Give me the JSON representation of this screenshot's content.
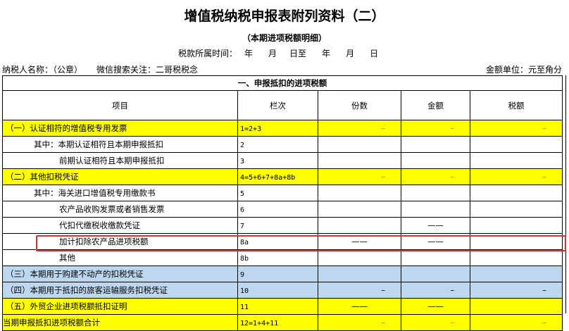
{
  "title": "增值税纳税申报表附列资料（二）",
  "subtitle": "（本期进项税额明细）",
  "period": {
    "label": "税款所属时间：",
    "year1": "年",
    "month1": "月",
    "day1": "日至",
    "year2": "年",
    "month2": "月",
    "day2": "日"
  },
  "taxpayer": "纳税人名称：（公章）",
  "wechat": "微信搜索关注：二哥税税念",
  "unit": "金额单位：元至角分",
  "section": "一、申报抵扣的进项税额",
  "headers": [
    "项目",
    "栏次",
    "份数",
    "金额",
    "税额"
  ],
  "rows": [
    {
      "item": "（一）认证相符的增值税专用发票",
      "code": "1=2+3",
      "count": "–",
      "amount": "–",
      "tax": "–"
    },
    {
      "item": "其中：本期认证相符且本期申报抵扣",
      "code": "2",
      "count": "",
      "amount": "",
      "tax": ""
    },
    {
      "item": "前期认证相符且本期申报抵扣",
      "code": "3",
      "count": "",
      "amount": "",
      "tax": ""
    },
    {
      "item": "（二）其他扣税凭证",
      "code": "4=5+6+7+8a+8b",
      "count": "–",
      "amount": "–",
      "tax": "–"
    },
    {
      "item": "其中：海关进口增值税专用缴款书",
      "code": "5",
      "count": "",
      "amount": "",
      "tax": ""
    },
    {
      "item": "农产品收购发票或者销售发票",
      "code": "6",
      "count": "",
      "amount": "",
      "tax": ""
    },
    {
      "item": "代扣代缴税收缴款凭证",
      "code": "7",
      "count": "",
      "amount": "——",
      "tax": ""
    },
    {
      "item": "加计扣除农产品进项税额",
      "code": "8a",
      "count": "——",
      "amount": "——",
      "tax": ""
    },
    {
      "item": "其他",
      "code": "8b",
      "count": "",
      "amount": "",
      "tax": ""
    },
    {
      "item": "（三）本期用于购建不动产的扣税凭证",
      "code": "9",
      "count": "",
      "amount": "",
      "tax": ""
    },
    {
      "item": "（四）本期用于抵扣的旅客运输服务扣税凭证",
      "code": "10",
      "count": "–",
      "amount": "–",
      "tax": "–"
    },
    {
      "item": "（五）外贸企业进项税额抵扣证明",
      "code": "11",
      "count": "——",
      "amount": "——",
      "tax": ""
    },
    {
      "item": "当期申报抵扣进项税额合计",
      "code": "12=1+4+11",
      "count": "–",
      "amount": "–",
      "tax": "–"
    }
  ],
  "colors": {
    "yellow": "#ffff00",
    "blue": "#bdd7ee",
    "highlight": "#d9312d",
    "dash_orange": "#e36c09"
  }
}
